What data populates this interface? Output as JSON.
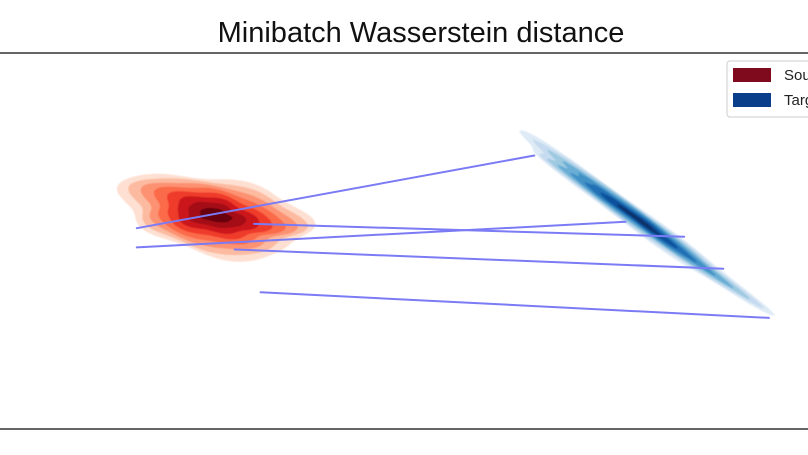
{
  "chart_data": {
    "type": "kde-contour",
    "title": "Minibatch Wasserstein distance",
    "xlabel": "",
    "ylabel": "",
    "grid": false,
    "legend_position": "top-right",
    "series": [
      {
        "name": "Source",
        "color": "#7f0a1e",
        "colormap": [
          "#fee0d2",
          "#fcbba1",
          "#fc9272",
          "#fb6a4a",
          "#ef3b2c",
          "#cb181d",
          "#a50f15",
          "#67000d"
        ],
        "center": [
          -3.2,
          0.4
        ],
        "spread": {
          "major": 1.45,
          "minor": 0.95,
          "angle_deg": -8
        }
      },
      {
        "name": "Target",
        "color": "#0a3d8a",
        "colormap": [
          "#deebf7",
          "#c6dbef",
          "#9ecae1",
          "#6baed6",
          "#4292c6",
          "#2171b5",
          "#08519c",
          "#08306b"
        ],
        "center": [
          3.3,
          0.3
        ],
        "spread": {
          "major": 2.3,
          "minor": 0.75,
          "angle_deg": -35
        }
      }
    ],
    "couplings": [
      {
        "from": [
          -4.4,
          0.1
        ],
        "to": [
          1.7,
          1.8
        ]
      },
      {
        "from": [
          -4.4,
          -0.35
        ],
        "to": [
          3.1,
          0.25
        ]
      },
      {
        "from": [
          -2.6,
          0.2
        ],
        "to": [
          4.0,
          -0.1
        ]
      },
      {
        "from": [
          -2.9,
          -0.4
        ],
        "to": [
          4.6,
          -0.85
        ]
      },
      {
        "from": [
          -2.5,
          -1.4
        ],
        "to": [
          5.3,
          -2.0
        ]
      }
    ],
    "coupling_color": "#7b7bf5",
    "xlim": [
      -6.5,
      5.9
    ],
    "ylim": [
      -4.6,
      4.2
    ]
  }
}
